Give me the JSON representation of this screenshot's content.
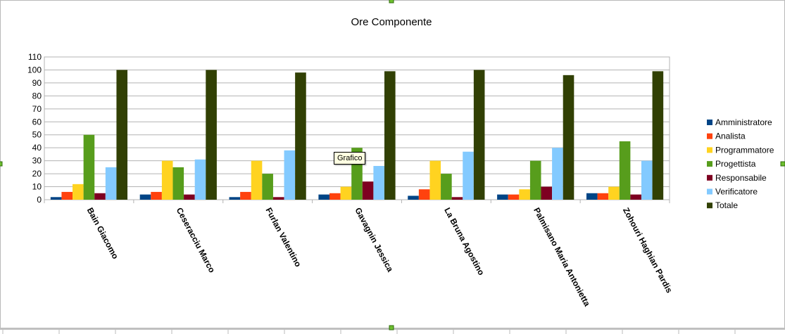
{
  "window": {
    "tooltip": "Grafico"
  },
  "chart_data": {
    "type": "bar",
    "title": "Ore Componente",
    "xlabel": "",
    "ylabel": "",
    "ylim": [
      0,
      110
    ],
    "ytick_step": 10,
    "grid": true,
    "legend_position": "right",
    "categories": [
      "Bain Giacomo",
      "Ceseracciu Marco",
      "Furlan Valentino",
      "Gavagnin Jessica",
      "La Bruna Agostino",
      "Palmisano Maria Antonietta",
      "Zohouri Haghian Pardis"
    ],
    "series": [
      {
        "name": "Amministratore",
        "color": "#004586",
        "values": [
          2,
          4,
          2,
          4,
          3,
          4,
          5
        ]
      },
      {
        "name": "Analista",
        "color": "#ff420e",
        "values": [
          6,
          6,
          6,
          5,
          8,
          4,
          5
        ]
      },
      {
        "name": "Programmatore",
        "color": "#ffd320",
        "values": [
          12,
          30,
          30,
          10,
          30,
          8,
          10
        ]
      },
      {
        "name": "Progettista",
        "color": "#579d1c",
        "values": [
          50,
          25,
          20,
          40,
          20,
          30,
          45
        ]
      },
      {
        "name": "Responsabile",
        "color": "#7e0021",
        "values": [
          5,
          4,
          2,
          14,
          2,
          10,
          4
        ]
      },
      {
        "name": "Verificatore",
        "color": "#83caff",
        "values": [
          25,
          31,
          38,
          26,
          37,
          40,
          30
        ]
      },
      {
        "name": "Totale",
        "color": "#314004",
        "values": [
          100,
          100,
          98,
          99,
          100,
          96,
          99
        ]
      }
    ]
  }
}
